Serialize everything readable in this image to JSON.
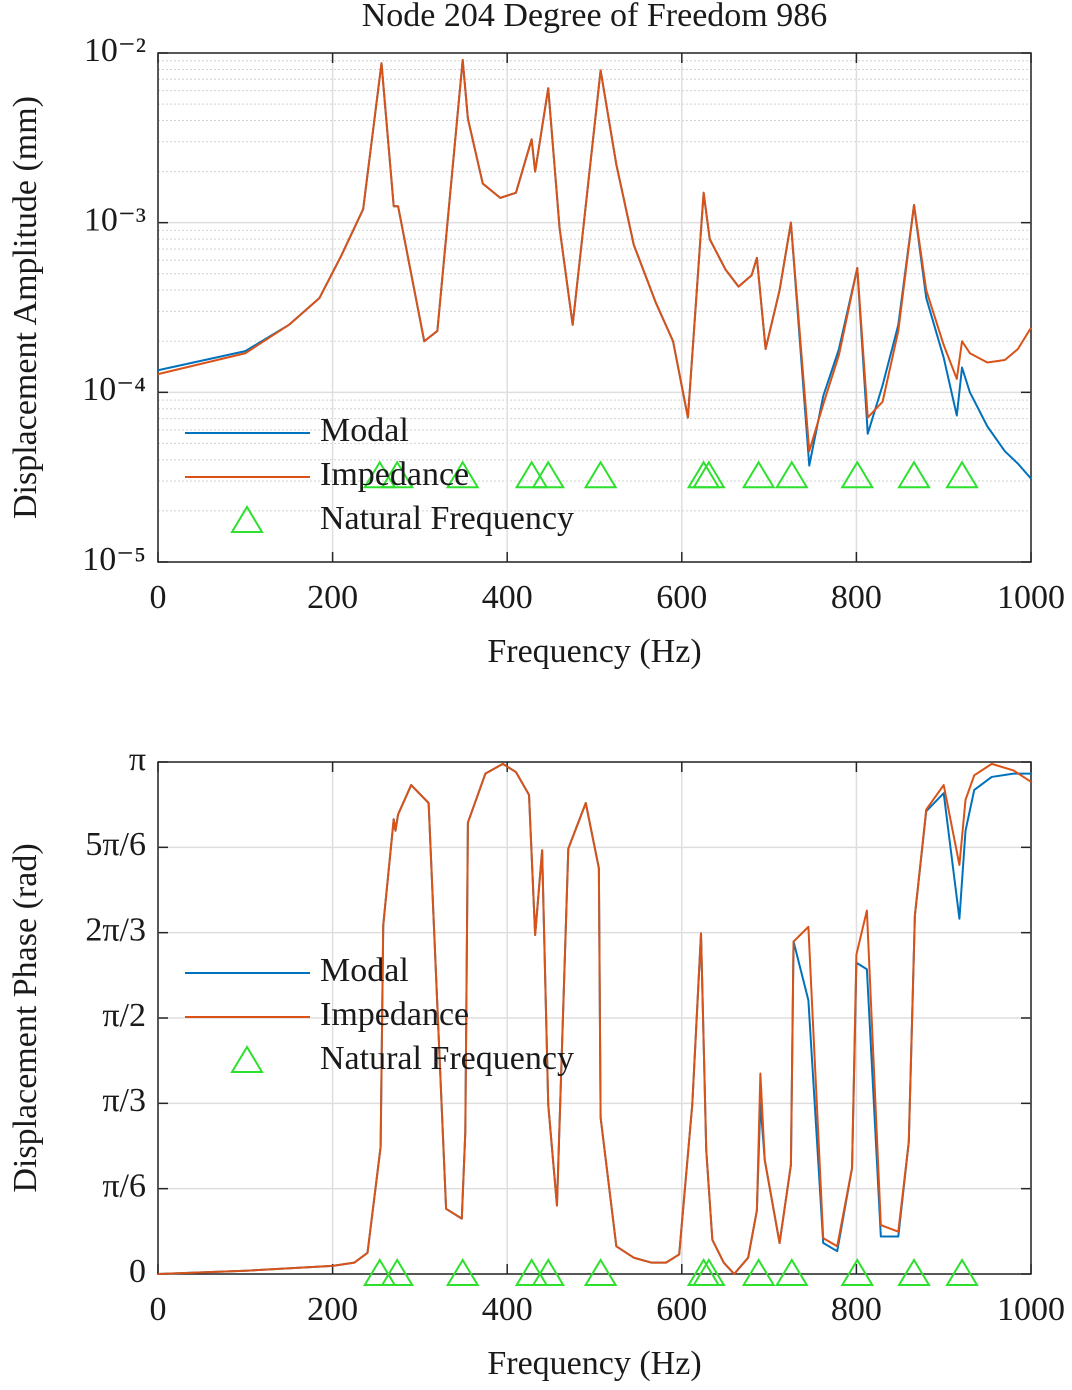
{
  "chart_data": [
    {
      "type": "line",
      "title": "Node 204 Degree of Freedom 986",
      "xlabel": "Frequency (Hz)",
      "ylabel": "Displacement Amplitude (mm)",
      "yscale": "log",
      "grid": true,
      "minor_grid": true,
      "legend": "southwest",
      "xlim": [
        0,
        1000
      ],
      "xticks": [
        0,
        200,
        400,
        600,
        800,
        1000
      ],
      "ylim": [
        1e-05,
        0.01
      ],
      "yticks": [
        {
          "value": 1e-05,
          "label": "10⁻⁵"
        },
        {
          "value": 0.0001,
          "label": "10⁻⁴"
        },
        {
          "value": 0.001,
          "label": "10⁻³"
        },
        {
          "value": 0.01,
          "label": "10⁻²"
        }
      ],
      "x": [
        0,
        100,
        150,
        185,
        210,
        235,
        256,
        270,
        275,
        305,
        320,
        349,
        355,
        372,
        392,
        410,
        428,
        432,
        447,
        460,
        475,
        507,
        525,
        545,
        570,
        590,
        607,
        625,
        632,
        650,
        665,
        680,
        686,
        696,
        712,
        725,
        746,
        762,
        780,
        801,
        813,
        830,
        848,
        866,
        880,
        900,
        915,
        921,
        930,
        950,
        970,
        985,
        1000
      ],
      "series": [
        {
          "name": "Modal",
          "color": "#0072bd",
          "values": [
            0.000135,
            0.000175,
            0.00025,
            0.00036,
            0.00064,
            0.0012,
            0.0087,
            0.00125,
            0.00125,
            0.0002,
            0.00023,
            0.0091,
            0.0041,
            0.0017,
            0.0014,
            0.0015,
            0.0031,
            0.002,
            0.0062,
            0.00093,
            0.00025,
            0.0079,
            0.0022,
            0.00074,
            0.00034,
            0.0002,
            7.1e-05,
            0.0015,
            0.0008,
            0.00053,
            0.00042,
            0.00049,
            0.00062,
            0.00018,
            0.0004,
            0.001,
            3.7e-05,
            9.5e-05,
            0.00018,
            0.00054,
            5.7e-05,
            0.00011,
            0.00025,
            0.00127,
            0.00036,
            0.00016,
            7.3e-05,
            0.00014,
            0.0001,
            6.3e-05,
            4.5e-05,
            3.8e-05,
            3.1e-05
          ]
        },
        {
          "name": "Impedance",
          "color": "#d95319",
          "values": [
            0.000128,
            0.00017,
            0.00025,
            0.00036,
            0.00064,
            0.0012,
            0.0087,
            0.00125,
            0.00125,
            0.0002,
            0.00023,
            0.0091,
            0.0041,
            0.0017,
            0.0014,
            0.0015,
            0.0031,
            0.002,
            0.0062,
            0.00093,
            0.00025,
            0.0079,
            0.0022,
            0.00074,
            0.00034,
            0.0002,
            7.1e-05,
            0.0015,
            0.0008,
            0.00053,
            0.00042,
            0.00049,
            0.00062,
            0.00018,
            0.0004,
            0.001,
            4.5e-05,
            8.5e-05,
            0.000166,
            0.00054,
            7.1e-05,
            8.8e-05,
            0.00023,
            0.00127,
            0.0004,
            0.00019,
            0.00012,
            0.0002,
            0.00017,
            0.00015,
            0.000155,
            0.00018,
            0.00024
          ]
        },
        {
          "name": "Natural Frequency",
          "color": "#2de02d",
          "marker": "triangle",
          "x": [
            254,
            274,
            349,
            428,
            447,
            507,
            625,
            631,
            688,
            726,
            801,
            866,
            921
          ],
          "values": [
            3.2e-05,
            3.2e-05,
            3.2e-05,
            3.2e-05,
            3.2e-05,
            3.2e-05,
            3.2e-05,
            3.2e-05,
            3.2e-05,
            3.2e-05,
            3.2e-05,
            3.2e-05,
            3.2e-05
          ]
        }
      ]
    },
    {
      "type": "line",
      "xlabel": "Frequency (Hz)",
      "ylabel": "Displacement Phase (rad)",
      "grid": true,
      "legend": "west",
      "xlim": [
        0,
        1000
      ],
      "xticks": [
        0,
        200,
        400,
        600,
        800,
        1000
      ],
      "ylim": [
        0,
        3.141592653589793
      ],
      "yticks": [
        0,
        {
          "value": 0.5235987755982988,
          "label": "π/6"
        },
        {
          "value": 1.0471975511965976,
          "label": "π/3"
        },
        {
          "value": 1.5707963267948966,
          "label": "π/2"
        },
        {
          "value": 2.0943951023931953,
          "label": "2π/3"
        },
        {
          "value": 2.6179938779914944,
          "label": "5π/6"
        },
        {
          "value": 3.141592653589793,
          "label": "π"
        }
      ],
      "x": [
        0,
        100,
        200,
        225,
        240,
        255,
        258,
        270,
        272,
        275,
        290,
        310,
        330,
        348,
        352,
        355,
        375,
        395,
        410,
        425,
        432,
        440,
        447,
        457,
        470,
        490,
        505,
        507,
        525,
        545,
        565,
        582,
        597,
        612,
        622,
        628,
        635,
        648,
        660,
        676,
        686,
        690,
        695,
        712,
        725,
        728,
        745,
        762,
        778,
        795,
        800,
        812,
        828,
        848,
        860,
        867,
        880,
        900,
        918,
        925,
        935,
        955,
        980,
        1000
      ],
      "series": [
        {
          "name": "Modal",
          "color": "#0072bd",
          "values": [
            0,
            0.02,
            0.05,
            0.07,
            0.13,
            0.78,
            2.14,
            2.79,
            2.72,
            2.82,
            3.0,
            2.89,
            0.4,
            0.34,
            0.87,
            2.77,
            3.07,
            3.13,
            3.08,
            2.94,
            2.08,
            2.6,
            1.04,
            0.42,
            2.61,
            2.89,
            2.49,
            0.96,
            0.17,
            0.1,
            0.07,
            0.07,
            0.12,
            1.04,
            2.09,
            0.76,
            0.21,
            0.07,
            0,
            0.1,
            0.39,
            1.05,
            0.7,
            0.19,
            0.67,
            2.04,
            1.68,
            0.19,
            0.14,
            0.65,
            1.91,
            1.87,
            0.23,
            0.23,
            0.81,
            2.2,
            2.84,
            2.95,
            2.18,
            2.72,
            2.97,
            3.05,
            3.07,
            3.07
          ]
        },
        {
          "name": "Impedance",
          "color": "#d95319",
          "values": [
            0,
            0.02,
            0.05,
            0.07,
            0.13,
            0.78,
            2.14,
            2.79,
            2.72,
            2.82,
            3.0,
            2.89,
            0.4,
            0.34,
            0.87,
            2.77,
            3.07,
            3.13,
            3.08,
            2.94,
            2.08,
            2.6,
            1.04,
            0.42,
            2.61,
            2.89,
            2.49,
            0.96,
            0.17,
            0.1,
            0.07,
            0.07,
            0.12,
            1.04,
            2.09,
            0.76,
            0.21,
            0.07,
            0,
            0.1,
            0.39,
            1.23,
            0.7,
            0.19,
            0.67,
            2.04,
            2.13,
            0.22,
            0.17,
            0.65,
            1.96,
            2.23,
            0.3,
            0.26,
            0.81,
            2.2,
            2.85,
            3.0,
            2.51,
            2.91,
            3.06,
            3.13,
            3.09,
            3.02
          ]
        },
        {
          "name": "Natural Frequency",
          "color": "#2de02d",
          "marker": "triangle",
          "x": [
            254,
            274,
            349,
            428,
            447,
            507,
            625,
            631,
            688,
            726,
            801,
            866,
            921
          ],
          "values": [
            0,
            0,
            0,
            0,
            0,
            0,
            0,
            0,
            0,
            0,
            0,
            0,
            0
          ]
        }
      ]
    }
  ]
}
